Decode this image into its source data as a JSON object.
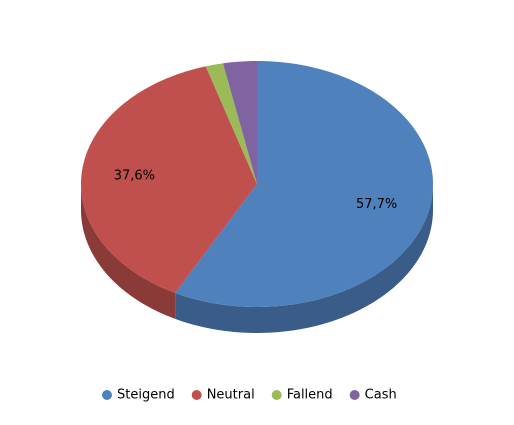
{
  "chart_data": {
    "type": "pie",
    "categories": [
      "Steigend",
      "Neutral",
      "Fallend",
      "Cash"
    ],
    "values": [
      57.7,
      37.6,
      1.6,
      3.1
    ],
    "value_labels": [
      "57,7%",
      "37,6%",
      null,
      null
    ],
    "colors": [
      "#4f81bd",
      "#c0504d",
      "#9bbb59",
      "#8064a2"
    ],
    "legend": "bottom"
  }
}
